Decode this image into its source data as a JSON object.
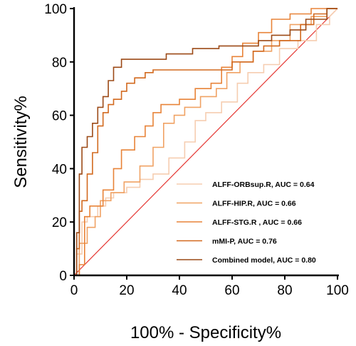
{
  "chart_data": {
    "type": "line",
    "title": "",
    "xlabel": "100% - Specificity%",
    "ylabel": "Sensitivity%",
    "xlim": [
      0,
      100
    ],
    "ylim": [
      0,
      100
    ],
    "xticks": [
      "0",
      "20",
      "40",
      "60",
      "80",
      "100"
    ],
    "yticks": [
      "0",
      "20",
      "40",
      "60",
      "80",
      "100"
    ],
    "grid": false,
    "legend_position": "bottom-right",
    "reference_line": {
      "x": [
        0,
        100
      ],
      "y": [
        0,
        100
      ],
      "color": "#e53935"
    },
    "series": [
      {
        "name": "ALFF-ORBsup.R, AUC = 0.64",
        "color": "#f6cdb0",
        "x": [
          0,
          1,
          1,
          3,
          3,
          5,
          5,
          9,
          9,
          12,
          12,
          15,
          15,
          20,
          20,
          25,
          25,
          30,
          30,
          36,
          36,
          42,
          42,
          46,
          46,
          50,
          50,
          56,
          56,
          62,
          62,
          66,
          66,
          72,
          72,
          78,
          78,
          85,
          85,
          92,
          92,
          97,
          97,
          100
        ],
        "y": [
          0,
          0,
          8,
          8,
          20,
          20,
          22,
          22,
          26,
          26,
          29,
          29,
          31,
          31,
          33,
          33,
          36,
          36,
          38,
          38,
          44,
          44,
          50,
          50,
          58,
          58,
          61,
          61,
          65,
          65,
          72,
          72,
          76,
          76,
          79,
          79,
          85,
          85,
          88,
          88,
          94,
          94,
          97,
          100
        ]
      },
      {
        "name": "ALFF-HIP.R, AUC = 0.66",
        "color": "#f0a264",
        "x": [
          0,
          2,
          2,
          5,
          5,
          8,
          8,
          10,
          10,
          14,
          14,
          19,
          19,
          25,
          25,
          30,
          30,
          34,
          34,
          38,
          38,
          42,
          42,
          48,
          48,
          54,
          54,
          58,
          58,
          63,
          63,
          68,
          68,
          75,
          75,
          82,
          82,
          90,
          90,
          96,
          96,
          100
        ],
        "y": [
          0,
          0,
          12,
          12,
          18,
          18,
          22,
          22,
          28,
          28,
          31,
          31,
          35,
          35,
          41,
          41,
          48,
          48,
          57,
          57,
          60,
          60,
          63,
          63,
          67,
          67,
          70,
          70,
          76,
          76,
          80,
          80,
          84,
          84,
          88,
          88,
          94,
          94,
          97,
          97,
          100,
          100
        ]
      },
      {
        "name": "ALFF-STG.R , AUC = 0.66",
        "color": "#e88338",
        "x": [
          0,
          2,
          2,
          4,
          4,
          6,
          6,
          11,
          11,
          15,
          15,
          18,
          18,
          23,
          23,
          27,
          27,
          30,
          30,
          33,
          33,
          40,
          40,
          46,
          46,
          52,
          52,
          56,
          56,
          60,
          60,
          64,
          64,
          70,
          70,
          75,
          75,
          82,
          82,
          90,
          90,
          95,
          95,
          100
        ],
        "y": [
          0,
          0,
          4,
          4,
          22,
          22,
          26,
          26,
          32,
          32,
          40,
          40,
          47,
          47,
          52,
          52,
          56,
          56,
          61,
          61,
          64,
          64,
          66,
          66,
          70,
          70,
          72,
          72,
          78,
          78,
          82,
          82,
          87,
          87,
          91,
          91,
          96,
          96,
          98,
          98,
          100,
          100,
          100,
          100
        ]
      },
      {
        "name": "mMI-P, AUC = 0.76",
        "color": "#d2691e",
        "x": [
          0,
          1,
          1,
          2,
          2,
          3,
          3,
          5,
          5,
          7,
          7,
          9,
          9,
          11,
          11,
          13,
          13,
          15,
          15,
          18,
          18,
          20,
          20,
          23,
          23,
          27,
          27,
          30,
          30,
          35,
          35,
          40,
          40,
          50,
          50,
          60,
          60,
          68,
          68,
          72,
          72,
          78,
          78,
          86,
          86,
          91,
          91,
          96,
          96,
          100
        ],
        "y": [
          0,
          0,
          10,
          10,
          24,
          24,
          28,
          28,
          38,
          38,
          46,
          46,
          56,
          56,
          61,
          61,
          64,
          64,
          66,
          66,
          69,
          69,
          72,
          72,
          74,
          74,
          76,
          76,
          77,
          77,
          77,
          77,
          77,
          77,
          77,
          77,
          80,
          80,
          84,
          84,
          86,
          86,
          88,
          88,
          94,
          94,
          98,
          98,
          100,
          100
        ]
      },
      {
        "name": "Combined model, AUC = 0.80",
        "color": "#9c4a17",
        "x": [
          0,
          1,
          1,
          2,
          2,
          3,
          3,
          5,
          5,
          7,
          7,
          9,
          9,
          11,
          11,
          13,
          13,
          15,
          15,
          18,
          18,
          20,
          20,
          25,
          25,
          30,
          30,
          35,
          35,
          40,
          40,
          45,
          45,
          50,
          50,
          55,
          55,
          65,
          65,
          70,
          70,
          75,
          75,
          82,
          82,
          88,
          88,
          96,
          96,
          100
        ],
        "y": [
          0,
          0,
          16,
          16,
          38,
          38,
          48,
          48,
          52,
          52,
          57,
          57,
          63,
          63,
          67,
          67,
          73,
          73,
          78,
          78,
          81,
          81,
          81,
          81,
          81,
          81,
          81,
          81,
          83,
          83,
          83,
          83,
          85,
          85,
          85,
          85,
          86,
          86,
          86,
          86,
          88,
          88,
          90,
          90,
          92,
          92,
          96,
          96,
          100,
          100
        ]
      }
    ]
  }
}
